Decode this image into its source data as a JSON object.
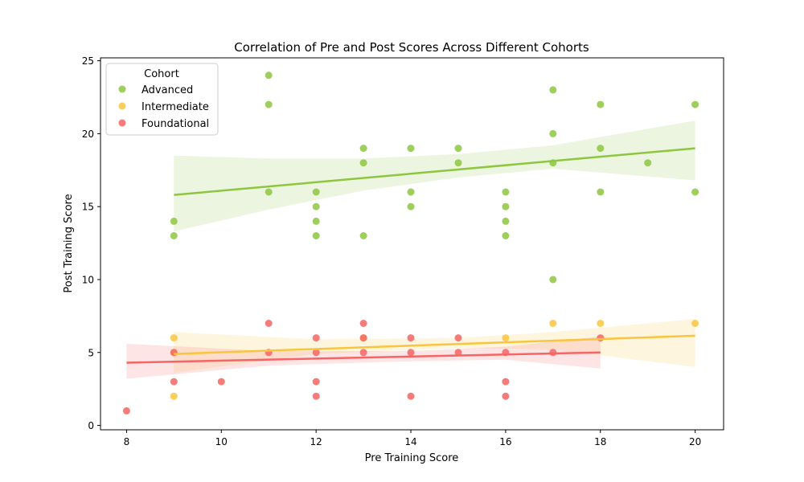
{
  "chart_data": {
    "type": "scatter",
    "title": "Correlation of Pre and Post Scores Across Different Cohorts",
    "xlabel": "Pre Training Score",
    "ylabel": "Post Training Score",
    "xlim": [
      7.45,
      20.6
    ],
    "ylim": [
      -0.3,
      25.2
    ],
    "xticks": [
      8,
      10,
      12,
      14,
      16,
      18,
      20
    ],
    "yticks": [
      0,
      5,
      10,
      15,
      20,
      25
    ],
    "grid": false,
    "legend": {
      "title": "Cohort",
      "position": "top-left"
    },
    "series": [
      {
        "name": "Advanced",
        "color": "#8dc63f",
        "points": [
          [
            9,
            14
          ],
          [
            9,
            13
          ],
          [
            11,
            24
          ],
          [
            11,
            22
          ],
          [
            11,
            16
          ],
          [
            12,
            16
          ],
          [
            12,
            15
          ],
          [
            12,
            14
          ],
          [
            12,
            13
          ],
          [
            13,
            19
          ],
          [
            13,
            18
          ],
          [
            13,
            13
          ],
          [
            14,
            19
          ],
          [
            14,
            16
          ],
          [
            14,
            15
          ],
          [
            15,
            19
          ],
          [
            15,
            18
          ],
          [
            16,
            16
          ],
          [
            16,
            15
          ],
          [
            16,
            14
          ],
          [
            16,
            13
          ],
          [
            17,
            23
          ],
          [
            17,
            20
          ],
          [
            17,
            18
          ],
          [
            17,
            10
          ],
          [
            18,
            22
          ],
          [
            18,
            19
          ],
          [
            18,
            16
          ],
          [
            19,
            18
          ],
          [
            20,
            22
          ],
          [
            20,
            16
          ]
        ],
        "fit": {
          "x": [
            9,
            20
          ],
          "y": [
            15.8,
            19.0
          ]
        },
        "ci": {
          "x": [
            9,
            11,
            13,
            15,
            17,
            20
          ],
          "upper": [
            18.5,
            18.3,
            18.3,
            18.6,
            19.2,
            20.9
          ],
          "lower": [
            13.3,
            14.8,
            16.1,
            17.0,
            17.6,
            16.8
          ]
        }
      },
      {
        "name": "Intermediate",
        "color": "#f9c53f",
        "points": [
          [
            9,
            6
          ],
          [
            9,
            5
          ],
          [
            9,
            2
          ],
          [
            13,
            6
          ],
          [
            16,
            6
          ],
          [
            17,
            7
          ],
          [
            18,
            7
          ],
          [
            20,
            7
          ]
        ],
        "fit": {
          "x": [
            9,
            20
          ],
          "y": [
            4.9,
            6.15
          ]
        },
        "ci": {
          "x": [
            9,
            12,
            15,
            17,
            20
          ],
          "upper": [
            6.4,
            5.9,
            6.0,
            6.4,
            7.3
          ],
          "lower": [
            3.6,
            4.9,
            5.3,
            5.2,
            4.0
          ]
        }
      },
      {
        "name": "Foundational",
        "color": "#f56565",
        "points": [
          [
            8,
            1
          ],
          [
            9,
            5
          ],
          [
            9,
            3
          ],
          [
            10,
            3
          ],
          [
            11,
            7
          ],
          [
            11,
            5
          ],
          [
            12,
            6
          ],
          [
            12,
            5
          ],
          [
            12,
            3
          ],
          [
            12,
            2
          ],
          [
            13,
            7
          ],
          [
            13,
            6
          ],
          [
            13,
            5
          ],
          [
            14,
            6
          ],
          [
            14,
            5
          ],
          [
            14,
            2
          ],
          [
            15,
            6
          ],
          [
            15,
            5
          ],
          [
            16,
            5
          ],
          [
            16,
            3
          ],
          [
            16,
            2
          ],
          [
            17,
            5
          ],
          [
            18,
            6
          ]
        ],
        "fit": {
          "x": [
            8,
            18
          ],
          "y": [
            4.3,
            5.0
          ]
        },
        "ci": {
          "x": [
            8,
            11,
            14,
            16,
            18
          ],
          "upper": [
            5.6,
            5.1,
            5.1,
            5.4,
            6.1
          ],
          "lower": [
            3.2,
            4.1,
            4.4,
            4.5,
            3.9
          ]
        }
      }
    ]
  }
}
